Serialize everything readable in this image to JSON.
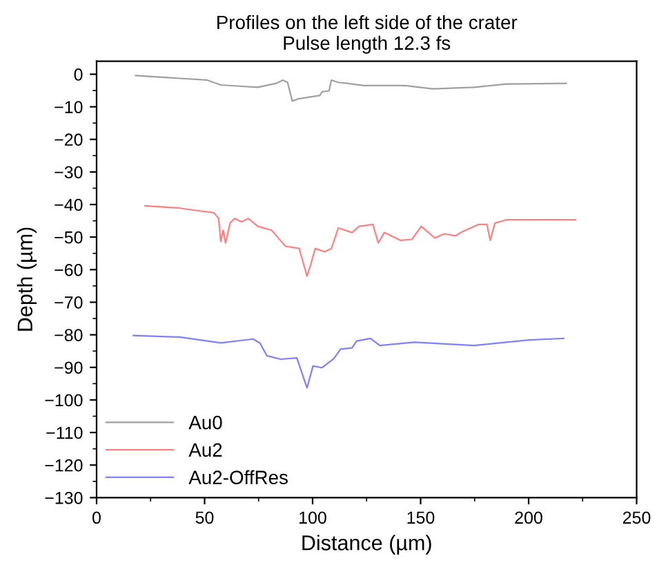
{
  "chart_data": {
    "type": "line",
    "title": "Profiles on the left side of the crater\nPulse length 12.3 fs",
    "xlabel": "Distance (µm)",
    "ylabel": "Depth (µm)",
    "xlim": [
      0,
      250
    ],
    "xticks": [
      0,
      50,
      100,
      150,
      200,
      250
    ],
    "ylim": [
      -130,
      4
    ],
    "yticks": [
      0,
      -10,
      -20,
      -30,
      -40,
      -50,
      -60,
      -70,
      -80,
      -90,
      -100,
      -110,
      -120,
      -130
    ],
    "grid": false,
    "legend": "bottom left",
    "marker": "none",
    "line_style": "solid",
    "series": [
      {
        "name": "Au0",
        "color": "#a0a0a0",
        "x": [
          18.1,
          51.2,
          57.5,
          74.6,
          83.1,
          86.3,
          88.4,
          90.6,
          93.8,
          103.4,
          104.4,
          107.6,
          108.7,
          111.9,
          116.2,
          123.6,
          142.8,
          155.6,
          174.7,
          189.7,
          217.4
        ],
        "values": [
          -0.4,
          -1.8,
          -3.3,
          -4.0,
          -2.8,
          -1.8,
          -2.5,
          -8.2,
          -7.5,
          -6.5,
          -5.4,
          -5.1,
          -1.8,
          -2.5,
          -2.8,
          -3.5,
          -3.5,
          -4.5,
          -4.0,
          -3.0,
          -2.8
        ]
      },
      {
        "name": "Au2",
        "color": "#ff8080",
        "x": [
          22.4,
          38.4,
          46.9,
          54.3,
          56.5,
          57.5,
          58.6,
          59.7,
          61.8,
          63.9,
          67.1,
          70.3,
          74.6,
          81.0,
          87.4,
          93.8,
          97.4,
          99.1,
          101.2,
          105.5,
          108.7,
          111.9,
          118.3,
          121.5,
          127.9,
          130.4,
          133.2,
          140.7,
          146.0,
          150.3,
          156.6,
          160.9,
          166.2,
          169.4,
          176.9,
          180.7,
          182.2,
          184.4,
          189.7,
          221.7
        ],
        "values": [
          -40.4,
          -41.1,
          -41.9,
          -42.5,
          -44.3,
          -51.4,
          -47.9,
          -51.8,
          -45.7,
          -44.3,
          -45.3,
          -44.3,
          -46.7,
          -47.9,
          -52.8,
          -53.5,
          -62.0,
          -58.5,
          -53.5,
          -54.5,
          -53.5,
          -47.2,
          -48.6,
          -46.7,
          -46.1,
          -51.8,
          -48.6,
          -51.0,
          -50.7,
          -46.7,
          -50.3,
          -49.0,
          -49.6,
          -48.3,
          -46.1,
          -46.1,
          -51.0,
          -45.7,
          -44.7,
          -44.7
        ]
      },
      {
        "name": "Au2-OffRes",
        "color": "#8080ff",
        "x": [
          17.0,
          38.4,
          57.5,
          72.4,
          75.6,
          78.8,
          85.2,
          92.7,
          97.4,
          100.2,
          104.4,
          109.8,
          113.0,
          118.3,
          120.4,
          126.8,
          131.1,
          147.1,
          174.7,
          200.3,
          216.3
        ],
        "values": [
          -80.2,
          -80.7,
          -82.5,
          -81.3,
          -82.5,
          -86.4,
          -87.5,
          -87.1,
          -96.3,
          -89.6,
          -90.1,
          -87.3,
          -84.4,
          -84.0,
          -81.9,
          -81.1,
          -83.3,
          -82.3,
          -83.3,
          -81.6,
          -81.1
        ]
      }
    ]
  }
}
